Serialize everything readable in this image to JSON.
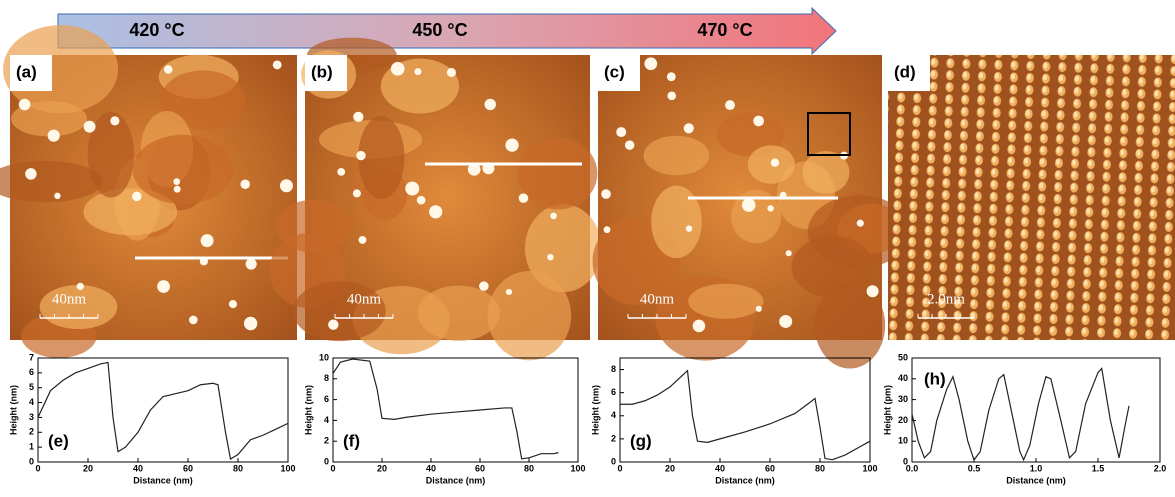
{
  "temperature_arrow": {
    "labels": [
      "420 °C",
      "450 °C",
      "470 °C"
    ]
  },
  "panels": [
    {
      "label": "(a)",
      "scale_bar": "40nm"
    },
    {
      "label": "(b)",
      "scale_bar": "40nm"
    },
    {
      "label": "(c)",
      "scale_bar": "40nm"
    },
    {
      "label": "(d)",
      "scale_bar": "2.0nm"
    }
  ],
  "chart_data": [
    {
      "type": "line",
      "label": "(e)",
      "x_label": "Distance (nm)",
      "y_label": "Height (nm)",
      "color": "#222222",
      "x": [
        0,
        5,
        10,
        15,
        20,
        25,
        28,
        30,
        32,
        35,
        40,
        45,
        50,
        55,
        60,
        65,
        70,
        72,
        75,
        77,
        80,
        85,
        90,
        95,
        100
      ],
      "values": [
        3,
        4.8,
        5.5,
        6,
        6.3,
        6.6,
        6.7,
        3,
        0.7,
        1,
        2,
        3.5,
        4.4,
        4.6,
        4.8,
        5.2,
        5.3,
        5.2,
        2,
        0.2,
        0.5,
        1.5,
        1.8,
        2.2,
        2.6
      ],
      "xlim": [
        0,
        100
      ],
      "xticks": [
        0,
        20,
        40,
        60,
        80,
        100
      ],
      "ylim": [
        0,
        7
      ],
      "yticks": [
        0,
        1,
        2,
        3,
        4,
        5,
        6,
        7
      ]
    },
    {
      "type": "line",
      "label": "(f)",
      "x_label": "Distance (nm)",
      "y_label": "Height (nm)",
      "color": "#222222",
      "x": [
        0,
        3,
        8,
        15,
        18,
        20,
        25,
        30,
        40,
        50,
        60,
        70,
        73,
        75,
        77,
        80,
        85,
        90,
        92
      ],
      "values": [
        8.5,
        9.6,
        9.9,
        9.7,
        7,
        4.2,
        4.1,
        4.3,
        4.6,
        4.8,
        5,
        5.2,
        5.2,
        3,
        0.3,
        0.4,
        0.8,
        0.8,
        0.9
      ],
      "xlim": [
        0,
        100
      ],
      "xticks": [
        0,
        20,
        40,
        60,
        80,
        100
      ],
      "ylim": [
        0,
        10
      ],
      "yticks": [
        0,
        2,
        4,
        6,
        8,
        10
      ]
    },
    {
      "type": "line",
      "label": "(g)",
      "x_label": "Distance (nm)",
      "y_label": "Height (nm)",
      "color": "#222222",
      "x": [
        0,
        5,
        10,
        15,
        20,
        25,
        27,
        29,
        31,
        35,
        40,
        50,
        60,
        70,
        75,
        78,
        80,
        82,
        85,
        90,
        95,
        100
      ],
      "values": [
        5,
        5,
        5.3,
        5.8,
        6.5,
        7.5,
        7.9,
        4,
        1.8,
        1.7,
        2,
        2.6,
        3.3,
        4.2,
        5,
        5.5,
        3,
        0.3,
        0.2,
        0.6,
        1.2,
        1.8
      ],
      "xlim": [
        0,
        100
      ],
      "xticks": [
        0,
        20,
        40,
        60,
        80,
        100
      ],
      "ylim": [
        0,
        9
      ],
      "yticks": [
        0,
        2,
        4,
        6,
        8
      ]
    },
    {
      "type": "line",
      "label": "(h)",
      "x_label": "Distance (nm)",
      "y_label": "Height (pm)",
      "color": "#222222",
      "x": [
        0,
        0.05,
        0.1,
        0.15,
        0.2,
        0.28,
        0.33,
        0.38,
        0.45,
        0.5,
        0.55,
        0.62,
        0.7,
        0.74,
        0.8,
        0.87,
        0.9,
        0.95,
        1.02,
        1.08,
        1.12,
        1.2,
        1.27,
        1.32,
        1.4,
        1.5,
        1.53,
        1.6,
        1.67,
        1.72,
        1.75
      ],
      "values": [
        23,
        10,
        2,
        5,
        20,
        35,
        41,
        30,
        10,
        1,
        5,
        25,
        40,
        42,
        25,
        5,
        1,
        8,
        28,
        41,
        40,
        20,
        2,
        5,
        28,
        43,
        45,
        20,
        2,
        18,
        27
      ],
      "xlim": [
        0,
        2
      ],
      "xticks": [
        {
          "value": 0,
          "label": "0.0"
        },
        0.5,
        {
          "value": 1,
          "label": "1.0"
        },
        1.5,
        {
          "value": 2,
          "label": "2.0"
        }
      ],
      "ylim": [
        0,
        50
      ],
      "yticks": [
        0,
        10,
        20,
        30,
        40,
        50
      ]
    }
  ]
}
